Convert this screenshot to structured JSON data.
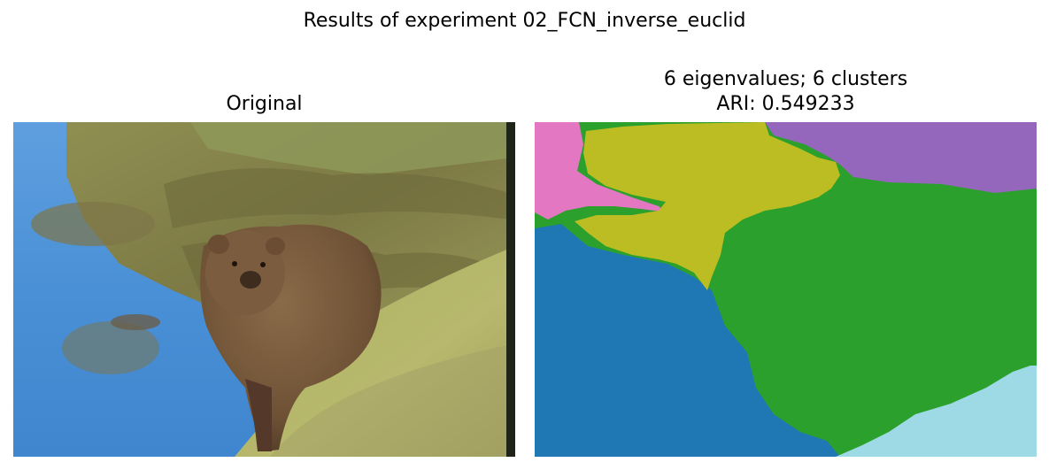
{
  "figure": {
    "title": "Results of experiment 02_FCN_inverse_euclid"
  },
  "panels": [
    {
      "title": "Original",
      "image": {
        "scene": "brown bear walking along a grassy riverbank beside blue water",
        "colors": {
          "water": "#4a90d6",
          "water_light": "#6aa6e0",
          "bank_grass": "#a7a85a",
          "bank_dark": "#6d6a3a",
          "bear": "#7a5a3c",
          "bear_dark": "#4d3626",
          "border_dark": "#1e2418"
        }
      }
    },
    {
      "title_line1": "6 eigenvalues; 6 clusters",
      "title_line2": "ARI: 0.549233",
      "image": {
        "type": "segmentation-map",
        "clusters": [
          {
            "color": "#1f77b4"
          },
          {
            "color": "#2ca02c"
          },
          {
            "color": "#bcbd22"
          },
          {
            "color": "#e377c2"
          },
          {
            "color": "#9467bd"
          },
          {
            "color": "#9edae5"
          }
        ]
      }
    }
  ]
}
